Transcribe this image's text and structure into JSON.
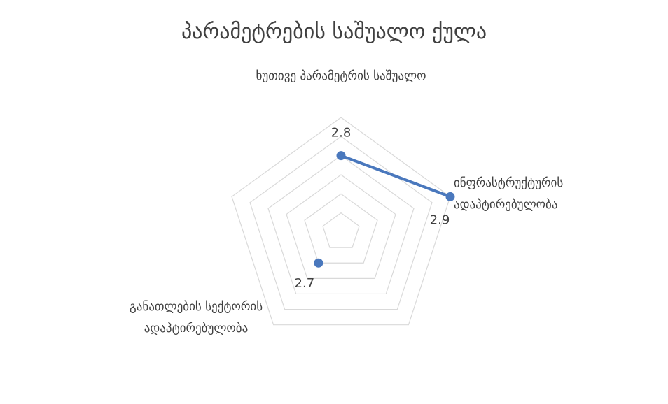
{
  "chart_data": {
    "type": "radar",
    "title": "პარამეტრების საშუალო ქულა",
    "categories": [
      "ხუთივე პარამეტრის საშუალო",
      "ინფრასტრუქტურის ადაპტირებულობა",
      null,
      "განათლების სექტორის ადაპტირებულობა",
      null
    ],
    "series": [
      {
        "color": "#4a78bd",
        "values": [
          2.8,
          2.9,
          null,
          2.7,
          null
        ]
      }
    ],
    "ylim": [
      2.6,
      2.9
    ],
    "yticks": [
      2.65,
      2.7,
      2.75,
      2.8,
      2.85,
      2.9
    ],
    "grid": true
  }
}
